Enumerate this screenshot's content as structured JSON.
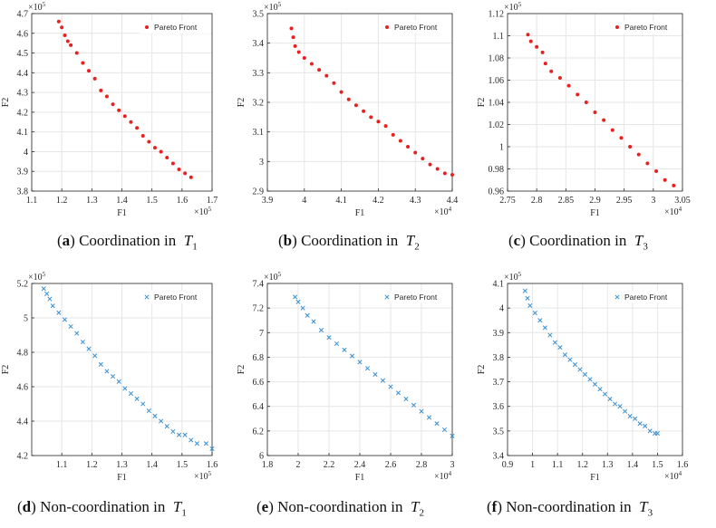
{
  "chart_data": [
    {
      "id": "a",
      "type": "scatter",
      "marker": "dot",
      "color": "#e8201f",
      "caption": {
        "letter": "a",
        "text": "Coordination in",
        "var": "T",
        "sub": "1"
      },
      "xlabel": "F1",
      "ylabel": "F2",
      "xlim": [
        1.1,
        1.7
      ],
      "ylim": [
        3.8,
        4.7
      ],
      "xticks": [
        "1.1",
        "1.2",
        "1.3",
        "1.4",
        "1.5",
        "1.6",
        "1.7"
      ],
      "yticks": [
        "3.8",
        "3.9",
        "4",
        "4.1",
        "4.2",
        "4.3",
        "4.4",
        "4.5",
        "4.6",
        "4.7"
      ],
      "xexp": "×10",
      "xexp_pow": "5",
      "yexp": "×10",
      "yexp_pow": "5",
      "legend": "Pareto Front",
      "grid": true,
      "points": [
        [
          1.19,
          4.66
        ],
        [
          1.2,
          4.63
        ],
        [
          1.21,
          4.59
        ],
        [
          1.22,
          4.56
        ],
        [
          1.23,
          4.54
        ],
        [
          1.25,
          4.5
        ],
        [
          1.27,
          4.45
        ],
        [
          1.29,
          4.41
        ],
        [
          1.31,
          4.37
        ],
        [
          1.33,
          4.31
        ],
        [
          1.35,
          4.28
        ],
        [
          1.37,
          4.24
        ],
        [
          1.39,
          4.21
        ],
        [
          1.41,
          4.18
        ],
        [
          1.43,
          4.15
        ],
        [
          1.45,
          4.12
        ],
        [
          1.47,
          4.08
        ],
        [
          1.49,
          4.05
        ],
        [
          1.51,
          4.02
        ],
        [
          1.53,
          4.0
        ],
        [
          1.55,
          3.97
        ],
        [
          1.57,
          3.94
        ],
        [
          1.59,
          3.91
        ],
        [
          1.61,
          3.89
        ],
        [
          1.63,
          3.87
        ]
      ]
    },
    {
      "id": "b",
      "type": "scatter",
      "marker": "dot",
      "color": "#e8201f",
      "caption": {
        "letter": "b",
        "text": "Coordination in",
        "var": "T",
        "sub": "2"
      },
      "xlabel": "F1",
      "ylabel": "F2",
      "xlim": [
        3.9,
        4.4
      ],
      "ylim": [
        2.9,
        3.5
      ],
      "xticks": [
        "3.9",
        "4",
        "4.1",
        "4.2",
        "4.3",
        "4.4"
      ],
      "yticks": [
        "2.9",
        "3",
        "3.1",
        "3.2",
        "3.3",
        "3.4",
        "3.5"
      ],
      "xexp": "×10",
      "xexp_pow": "4",
      "yexp": "×10",
      "yexp_pow": "5",
      "legend": "Pareto Front",
      "grid": true,
      "points": [
        [
          3.965,
          3.45
        ],
        [
          3.97,
          3.42
        ],
        [
          3.975,
          3.39
        ],
        [
          3.985,
          3.37
        ],
        [
          4.0,
          3.35
        ],
        [
          4.02,
          3.33
        ],
        [
          4.04,
          3.31
        ],
        [
          4.06,
          3.29
        ],
        [
          4.08,
          3.265
        ],
        [
          4.1,
          3.235
        ],
        [
          4.12,
          3.21
        ],
        [
          4.14,
          3.19
        ],
        [
          4.16,
          3.17
        ],
        [
          4.18,
          3.15
        ],
        [
          4.2,
          3.135
        ],
        [
          4.22,
          3.12
        ],
        [
          4.24,
          3.09
        ],
        [
          4.26,
          3.07
        ],
        [
          4.28,
          3.05
        ],
        [
          4.3,
          3.03
        ],
        [
          4.32,
          3.01
        ],
        [
          4.34,
          2.99
        ],
        [
          4.36,
          2.975
        ],
        [
          4.38,
          2.96
        ],
        [
          4.4,
          2.955
        ]
      ]
    },
    {
      "id": "c",
      "type": "scatter",
      "marker": "dot",
      "color": "#e8201f",
      "caption": {
        "letter": "c",
        "text": "Coordination in",
        "var": "T",
        "sub": "3"
      },
      "xlabel": "F1",
      "ylabel": "F2",
      "xlim": [
        2.75,
        3.05
      ],
      "ylim": [
        0.96,
        1.12
      ],
      "xticks": [
        "2.75",
        "2.8",
        "2.85",
        "2.9",
        "2.95",
        "3",
        "3.05"
      ],
      "yticks": [
        "0.96",
        "0.98",
        "1",
        "1.02",
        "1.04",
        "1.06",
        "1.08",
        "1.1",
        "1.12"
      ],
      "xexp": "×10",
      "xexp_pow": "4",
      "yexp": "×10",
      "yexp_pow": "5",
      "legend": "Pareto Front",
      "grid": true,
      "points": [
        [
          2.785,
          1.101
        ],
        [
          2.79,
          1.095
        ],
        [
          2.8,
          1.09
        ],
        [
          2.81,
          1.085
        ],
        [
          2.815,
          1.075
        ],
        [
          2.825,
          1.068
        ],
        [
          2.84,
          1.062
        ],
        [
          2.855,
          1.055
        ],
        [
          2.87,
          1.047
        ],
        [
          2.885,
          1.04
        ],
        [
          2.9,
          1.031
        ],
        [
          2.915,
          1.024
        ],
        [
          2.93,
          1.015
        ],
        [
          2.945,
          1.008
        ],
        [
          2.96,
          1.0
        ],
        [
          2.975,
          0.993
        ],
        [
          2.99,
          0.985
        ],
        [
          3.005,
          0.978
        ],
        [
          3.02,
          0.97
        ],
        [
          3.035,
          0.965
        ]
      ]
    },
    {
      "id": "d",
      "type": "scatter",
      "marker": "x",
      "color": "#3a8fd0",
      "caption": {
        "letter": "d",
        "text": "Non-coordination in",
        "var": "T",
        "sub": "1"
      },
      "xlabel": "F1",
      "ylabel": "F2",
      "xlim": [
        1.0,
        1.6
      ],
      "ylim": [
        4.2,
        5.2
      ],
      "xticks": [
        "1.1",
        "1.2",
        "1.3",
        "1.4",
        "1.5",
        "1.6"
      ],
      "yticks": [
        "4.2",
        "4.4",
        "4.6",
        "4.8",
        "5",
        "5.2"
      ],
      "xexp": "×10",
      "xexp_pow": "5",
      "yexp": "×10",
      "yexp_pow": "5",
      "legend": "Pareto Front",
      "grid": true,
      "points": [
        [
          1.04,
          5.17
        ],
        [
          1.05,
          5.14
        ],
        [
          1.06,
          5.11
        ],
        [
          1.07,
          5.07
        ],
        [
          1.09,
          5.03
        ],
        [
          1.11,
          4.99
        ],
        [
          1.13,
          4.95
        ],
        [
          1.15,
          4.91
        ],
        [
          1.17,
          4.86
        ],
        [
          1.19,
          4.82
        ],
        [
          1.21,
          4.78
        ],
        [
          1.23,
          4.73
        ],
        [
          1.25,
          4.69
        ],
        [
          1.27,
          4.66
        ],
        [
          1.29,
          4.63
        ],
        [
          1.31,
          4.59
        ],
        [
          1.33,
          4.56
        ],
        [
          1.35,
          4.53
        ],
        [
          1.37,
          4.5
        ],
        [
          1.39,
          4.46
        ],
        [
          1.41,
          4.43
        ],
        [
          1.43,
          4.4
        ],
        [
          1.45,
          4.37
        ],
        [
          1.47,
          4.34
        ],
        [
          1.49,
          4.32
        ],
        [
          1.51,
          4.32
        ],
        [
          1.53,
          4.29
        ],
        [
          1.55,
          4.27
        ],
        [
          1.58,
          4.27
        ],
        [
          1.6,
          4.24
        ]
      ]
    },
    {
      "id": "e",
      "type": "scatter",
      "marker": "x",
      "color": "#3a8fd0",
      "caption": {
        "letter": "e",
        "text": "Non-coordination in",
        "var": "T",
        "sub": "2"
      },
      "xlabel": "F1",
      "ylabel": "F2",
      "xlim": [
        1.8,
        3.0
      ],
      "ylim": [
        6.0,
        7.4
      ],
      "xticks": [
        "1.8",
        "2",
        "2.2",
        "2.4",
        "2.6",
        "2.8",
        "3"
      ],
      "yticks": [
        "6",
        "6.2",
        "6.4",
        "6.6",
        "6.8",
        "7",
        "7.2",
        "7.4"
      ],
      "xexp": "×10",
      "xexp_pow": "4",
      "yexp": "×10",
      "yexp_pow": "5",
      "legend": "Pareto Front",
      "grid": true,
      "points": [
        [
          1.98,
          7.29
        ],
        [
          2.0,
          7.25
        ],
        [
          2.03,
          7.2
        ],
        [
          2.06,
          7.14
        ],
        [
          2.1,
          7.09
        ],
        [
          2.15,
          7.02
        ],
        [
          2.2,
          6.96
        ],
        [
          2.25,
          6.91
        ],
        [
          2.3,
          6.86
        ],
        [
          2.35,
          6.81
        ],
        [
          2.4,
          6.76
        ],
        [
          2.45,
          6.71
        ],
        [
          2.5,
          6.66
        ],
        [
          2.55,
          6.61
        ],
        [
          2.6,
          6.56
        ],
        [
          2.65,
          6.51
        ],
        [
          2.7,
          6.46
        ],
        [
          2.75,
          6.41
        ],
        [
          2.8,
          6.36
        ],
        [
          2.85,
          6.31
        ],
        [
          2.9,
          6.26
        ],
        [
          2.95,
          6.21
        ],
        [
          3.0,
          6.16
        ]
      ]
    },
    {
      "id": "f",
      "type": "scatter",
      "marker": "x",
      "color": "#3a8fd0",
      "caption": {
        "letter": "f",
        "text": "Non-coordination in",
        "var": "T",
        "sub": "3"
      },
      "xlabel": "F1",
      "ylabel": "F2",
      "xlim": [
        0.9,
        1.6
      ],
      "ylim": [
        3.4,
        4.1
      ],
      "xticks": [
        "0.9",
        "1",
        "1.1",
        "1.2",
        "1.3",
        "1.4",
        "1.5",
        "1.6"
      ],
      "yticks": [
        "3.4",
        "3.5",
        "3.6",
        "3.7",
        "3.8",
        "3.9",
        "4",
        "4.1"
      ],
      "xexp": "×10",
      "xexp_pow": "4",
      "yexp": "×10",
      "yexp_pow": "5",
      "legend": "Pareto Front",
      "grid": true,
      "points": [
        [
          0.97,
          4.07
        ],
        [
          0.98,
          4.04
        ],
        [
          0.99,
          4.01
        ],
        [
          1.01,
          3.98
        ],
        [
          1.03,
          3.95
        ],
        [
          1.05,
          3.92
        ],
        [
          1.07,
          3.89
        ],
        [
          1.09,
          3.86
        ],
        [
          1.11,
          3.84
        ],
        [
          1.13,
          3.81
        ],
        [
          1.15,
          3.79
        ],
        [
          1.17,
          3.77
        ],
        [
          1.19,
          3.75
        ],
        [
          1.21,
          3.73
        ],
        [
          1.23,
          3.71
        ],
        [
          1.25,
          3.69
        ],
        [
          1.27,
          3.67
        ],
        [
          1.29,
          3.65
        ],
        [
          1.31,
          3.63
        ],
        [
          1.33,
          3.61
        ],
        [
          1.35,
          3.6
        ],
        [
          1.37,
          3.58
        ],
        [
          1.39,
          3.56
        ],
        [
          1.41,
          3.55
        ],
        [
          1.43,
          3.53
        ],
        [
          1.45,
          3.52
        ],
        [
          1.47,
          3.5
        ],
        [
          1.49,
          3.49
        ],
        [
          1.5,
          3.49
        ]
      ]
    }
  ]
}
